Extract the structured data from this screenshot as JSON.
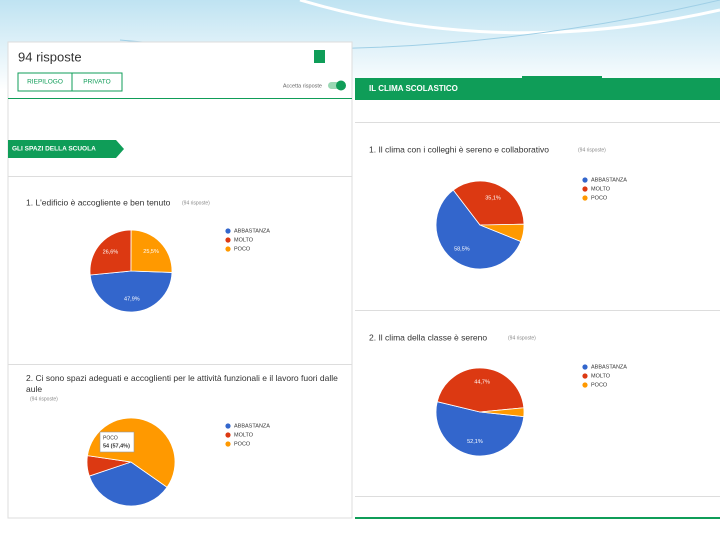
{
  "left_panel": {
    "header": "94 risposte",
    "tabs": [
      "RIEPILOGO",
      "PRIVATO"
    ],
    "accept_label": "Accetta risposte",
    "section": "GLI SPAZI DELLA SCUOLA"
  },
  "right_panel": {
    "section": "IL CLIMA SCOLASTICO"
  },
  "chart_data": [
    {
      "type": "pie",
      "title": "1. L'edificio è accogliente e ben tenuto",
      "subtitle": "(94 risposte)",
      "categories": [
        "ABBASTANZA",
        "MOLTO",
        "POCO"
      ],
      "values": [
        47.9,
        26.6,
        25.5
      ],
      "value_labels": [
        "47,9%",
        "26,6%",
        "25,5%"
      ],
      "colors": [
        "#3366cc",
        "#dc3912",
        "#ff9900"
      ]
    },
    {
      "type": "pie",
      "title": "2. Ci sono spazi adeguati e accoglienti per le attività funzionali e il lavoro fuori dalle aule",
      "subtitle": "(94 risposte)",
      "categories": [
        "ABBASTANZA",
        "MOLTO",
        "POCO"
      ],
      "values": [
        35.1,
        7.5,
        57.4
      ],
      "colors": [
        "#3366cc",
        "#dc3912",
        "#ff9900"
      ],
      "tooltip": {
        "category": "POCO",
        "text": "54 (57,4%)"
      }
    },
    {
      "type": "pie",
      "title": "1. Il clima con i colleghi è sereno e collaborativo",
      "subtitle": "(94 risposte)",
      "categories": [
        "ABBASTANZA",
        "MOLTO",
        "POCO"
      ],
      "values": [
        58.5,
        35.1,
        6.4
      ],
      "value_labels": [
        "58,5%",
        "35,1%",
        null
      ],
      "colors": [
        "#3366cc",
        "#dc3912",
        "#ff9900"
      ]
    },
    {
      "type": "pie",
      "title": "2. Il clima della classe è sereno",
      "subtitle": "(94 risposte)",
      "categories": [
        "ABBASTANZA",
        "MOLTO",
        "POCO"
      ],
      "values": [
        52.1,
        44.7,
        3.2
      ],
      "value_labels": [
        "52,1%",
        "44,7%",
        null
      ],
      "colors": [
        "#3366cc",
        "#dc3912",
        "#ff9900"
      ]
    }
  ]
}
